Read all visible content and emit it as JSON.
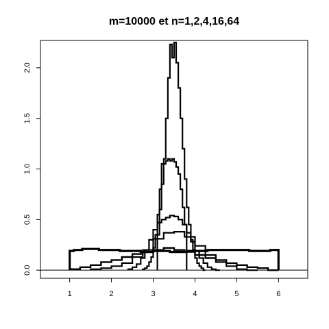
{
  "chart_data": {
    "type": "line",
    "title": "m=10000 et n=1,2,4,16,64",
    "xlabel": "",
    "ylabel": "",
    "xlim": [
      0.3,
      6.7
    ],
    "ylim": [
      -0.08,
      2.27
    ],
    "x_ticks": [
      1,
      2,
      3,
      4,
      5,
      6
    ],
    "y_ticks": [
      0.0,
      0.5,
      1.0,
      1.5,
      2.0
    ],
    "x_tick_labels": [
      "1",
      "2",
      "3",
      "4",
      "5",
      "6"
    ],
    "y_tick_labels": [
      "0.0",
      "0.5",
      "1.0",
      "1.5",
      "2.0"
    ],
    "grid": false,
    "baseline": 0,
    "series": [
      {
        "n": 1,
        "bins": [
          [
            1.0,
            1.1,
            0.19
          ],
          [
            1.1,
            1.2,
            0.2
          ],
          [
            1.2,
            1.3,
            0.2
          ],
          [
            1.3,
            1.4,
            0.21
          ],
          [
            1.4,
            1.5,
            0.21
          ],
          [
            1.5,
            1.6,
            0.21
          ],
          [
            1.6,
            1.7,
            0.21
          ],
          [
            1.7,
            1.8,
            0.2
          ],
          [
            1.8,
            1.9,
            0.2
          ],
          [
            1.9,
            2.0,
            0.2
          ],
          [
            2.0,
            2.1,
            0.2
          ],
          [
            2.1,
            2.2,
            0.2
          ],
          [
            2.2,
            2.3,
            0.19
          ],
          [
            2.3,
            2.4,
            0.19
          ],
          [
            2.4,
            2.5,
            0.19
          ],
          [
            2.5,
            2.6,
            0.19
          ],
          [
            2.6,
            2.7,
            0.19
          ],
          [
            2.7,
            2.8,
            0.18
          ],
          [
            2.8,
            2.9,
            0.18
          ],
          [
            2.9,
            3.0,
            0.18
          ],
          [
            3.0,
            3.1,
            0.19
          ],
          [
            3.1,
            3.2,
            0.19
          ],
          [
            3.2,
            3.3,
            0.19
          ],
          [
            3.3,
            3.4,
            0.19
          ],
          [
            3.4,
            3.5,
            0.18
          ],
          [
            3.5,
            3.6,
            0.18
          ],
          [
            3.6,
            3.7,
            0.18
          ],
          [
            3.7,
            3.8,
            0.18
          ],
          [
            3.8,
            3.9,
            0.19
          ],
          [
            3.9,
            4.0,
            0.19
          ],
          [
            4.0,
            4.1,
            0.19
          ],
          [
            4.1,
            4.2,
            0.19
          ],
          [
            4.2,
            4.3,
            0.19
          ],
          [
            4.3,
            4.4,
            0.2
          ],
          [
            4.4,
            4.5,
            0.2
          ],
          [
            4.5,
            4.6,
            0.2
          ],
          [
            4.6,
            4.7,
            0.2
          ],
          [
            4.7,
            4.8,
            0.2
          ],
          [
            4.8,
            4.9,
            0.2
          ],
          [
            4.9,
            5.0,
            0.2
          ],
          [
            5.0,
            5.1,
            0.2
          ],
          [
            5.1,
            5.2,
            0.2
          ],
          [
            5.2,
            5.3,
            0.2
          ],
          [
            5.3,
            5.4,
            0.19
          ],
          [
            5.4,
            5.5,
            0.19
          ],
          [
            5.5,
            5.6,
            0.19
          ],
          [
            5.6,
            5.7,
            0.19
          ],
          [
            5.7,
            5.8,
            0.19
          ],
          [
            5.8,
            5.9,
            0.2
          ],
          [
            5.9,
            6.0,
            0.2
          ]
        ]
      },
      {
        "n": 2,
        "bins": [
          [
            1.0,
            1.25,
            0.01
          ],
          [
            1.25,
            1.5,
            0.03
          ],
          [
            1.5,
            1.75,
            0.05
          ],
          [
            1.75,
            2.0,
            0.08
          ],
          [
            2.0,
            2.25,
            0.1
          ],
          [
            2.25,
            2.5,
            0.13
          ],
          [
            2.5,
            2.75,
            0.16
          ],
          [
            2.75,
            3.0,
            0.18
          ],
          [
            3.0,
            3.25,
            0.2
          ],
          [
            3.25,
            3.5,
            0.22
          ],
          [
            3.5,
            3.75,
            0.2
          ],
          [
            3.75,
            4.0,
            0.18
          ],
          [
            4.0,
            4.25,
            0.15
          ],
          [
            4.25,
            4.5,
            0.12
          ],
          [
            4.5,
            4.75,
            0.1
          ],
          [
            4.75,
            5.0,
            0.07
          ],
          [
            5.0,
            5.25,
            0.05
          ],
          [
            5.25,
            5.5,
            0.03
          ],
          [
            5.5,
            5.75,
            0.02
          ],
          [
            5.75,
            6.0,
            0.0
          ]
        ]
      },
      {
        "n": 4,
        "bins": [
          [
            1.5,
            1.75,
            0.01
          ],
          [
            1.75,
            2.0,
            0.02
          ],
          [
            2.0,
            2.25,
            0.04
          ],
          [
            2.25,
            2.5,
            0.07
          ],
          [
            2.5,
            2.75,
            0.13
          ],
          [
            2.75,
            3.0,
            0.2
          ],
          [
            3.0,
            3.25,
            0.31
          ],
          [
            3.25,
            3.5,
            0.37
          ],
          [
            3.5,
            3.75,
            0.38
          ],
          [
            3.75,
            4.0,
            0.33
          ],
          [
            4.0,
            4.25,
            0.24
          ],
          [
            4.25,
            4.5,
            0.15
          ],
          [
            4.5,
            4.75,
            0.08
          ],
          [
            4.75,
            5.0,
            0.04
          ],
          [
            5.0,
            5.25,
            0.01
          ],
          [
            5.25,
            5.5,
            0.0
          ]
        ]
      },
      {
        "n": 16,
        "bins": [
          [
            2.4,
            2.5,
            0.01
          ],
          [
            2.5,
            2.6,
            0.03
          ],
          [
            2.6,
            2.7,
            0.06
          ],
          [
            2.7,
            2.8,
            0.12
          ],
          [
            2.8,
            2.9,
            0.2
          ],
          [
            2.9,
            3.0,
            0.3
          ],
          [
            3.0,
            3.1,
            0.4
          ],
          [
            3.1,
            3.2,
            0.47
          ],
          [
            3.2,
            3.3,
            0.5
          ],
          [
            3.3,
            3.4,
            0.52
          ],
          [
            3.4,
            3.5,
            0.54
          ],
          [
            3.5,
            3.6,
            0.53
          ],
          [
            3.6,
            3.7,
            0.5
          ],
          [
            3.7,
            3.8,
            0.45
          ],
          [
            3.8,
            3.9,
            0.37
          ],
          [
            3.9,
            4.0,
            0.28
          ],
          [
            4.0,
            4.1,
            0.19
          ],
          [
            4.1,
            4.2,
            0.12
          ],
          [
            4.2,
            4.3,
            0.07
          ],
          [
            4.3,
            4.4,
            0.03
          ],
          [
            4.4,
            4.5,
            0.01
          ],
          [
            4.5,
            4.6,
            0.0
          ]
        ]
      },
      {
        "n": 64,
        "bins": [
          [
            2.75,
            2.8,
            0.01
          ],
          [
            2.8,
            2.85,
            0.02
          ],
          [
            2.85,
            2.9,
            0.04
          ],
          [
            2.9,
            2.95,
            0.08
          ],
          [
            2.95,
            3.0,
            0.13
          ],
          [
            3.0,
            3.05,
            0.22
          ],
          [
            3.05,
            3.1,
            0.35
          ],
          [
            3.1,
            3.15,
            0.55
          ],
          [
            3.15,
            3.2,
            0.8
          ],
          [
            3.2,
            3.25,
            1.05
          ],
          [
            3.25,
            3.3,
            1.1
          ],
          [
            3.3,
            3.35,
            1.5
          ],
          [
            3.35,
            3.4,
            1.9
          ],
          [
            3.4,
            3.45,
            2.23
          ],
          [
            3.45,
            3.5,
            2.1
          ],
          [
            3.5,
            3.55,
            2.25
          ],
          [
            3.55,
            3.6,
            2.05
          ],
          [
            3.6,
            3.65,
            1.8
          ],
          [
            3.65,
            3.7,
            1.5
          ],
          [
            3.7,
            3.75,
            1.2
          ],
          [
            3.75,
            3.8,
            0.9
          ],
          [
            3.8,
            3.85,
            0.62
          ],
          [
            3.85,
            3.9,
            0.45
          ],
          [
            3.9,
            3.95,
            0.3
          ],
          [
            3.95,
            4.0,
            0.2
          ],
          [
            4.0,
            4.05,
            0.12
          ],
          [
            4.05,
            4.1,
            0.07
          ],
          [
            4.1,
            4.15,
            0.04
          ],
          [
            4.15,
            4.2,
            0.02
          ],
          [
            4.2,
            4.25,
            0.0
          ]
        ]
      },
      {
        "n": 64,
        "bins": [
          [
            3.1,
            3.15,
            0.35
          ],
          [
            3.15,
            3.2,
            0.6
          ],
          [
            3.2,
            3.25,
            0.85
          ],
          [
            3.25,
            3.3,
            1.05
          ],
          [
            3.3,
            3.35,
            1.08
          ],
          [
            3.35,
            3.4,
            1.1
          ],
          [
            3.4,
            3.45,
            1.08
          ],
          [
            3.45,
            3.5,
            1.1
          ],
          [
            3.5,
            3.55,
            1.07
          ],
          [
            3.55,
            3.6,
            1.02
          ],
          [
            3.6,
            3.65,
            0.95
          ],
          [
            3.65,
            3.7,
            0.8
          ],
          [
            3.7,
            3.75,
            0.62
          ],
          [
            3.75,
            3.8,
            0.45
          ]
        ]
      }
    ]
  }
}
